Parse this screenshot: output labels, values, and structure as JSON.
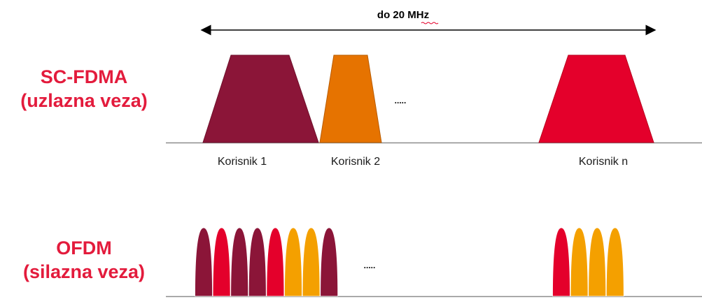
{
  "bandwidth_label": "do 20 MHz",
  "sc_fdma": {
    "title": "SC-FDMA",
    "subtitle": "(uzlazna veza)",
    "users": [
      "Korisnik 1",
      "Korisnik 2",
      "Korisnik n"
    ],
    "ellipsis": "....."
  },
  "ofdm": {
    "title": "OFDM",
    "subtitle": "(silazna veza)",
    "ellipsis": "....."
  },
  "colors": {
    "maroon": "#8b1538",
    "orange": "#e67300",
    "red": "#e4002b",
    "amber": "#f4a000",
    "label_red": "#e31b3c",
    "axis": "#8c8c8c"
  },
  "ofdm_subcarriers_left": [
    "maroon",
    "red",
    "maroon",
    "maroon",
    "red",
    "amber",
    "amber",
    "maroon"
  ],
  "ofdm_subcarriers_right": [
    "red",
    "amber",
    "amber",
    "amber"
  ]
}
